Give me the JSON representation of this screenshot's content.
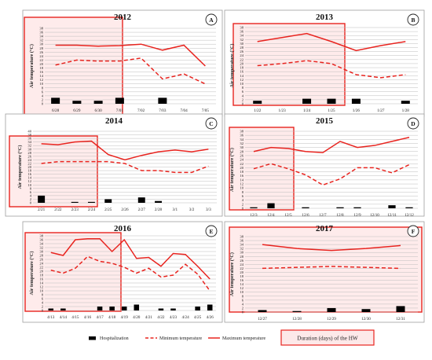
{
  "colors": {
    "max": "#e8241f",
    "min": "#e8241f",
    "hosp": "#000000",
    "hw_fill": "#fde2e2",
    "hw_border": "#e8241f",
    "grid": "#bdbdbd"
  },
  "legend": {
    "hospitalization": "Hospitalization",
    "min": "Minimum temperature",
    "max": "Maximum temperature",
    "hw": "Duration (days) of the HW"
  },
  "chart_data": [
    {
      "panel": "A",
      "title": "2012",
      "type": "line",
      "ylabel": "Air temperature (°C)",
      "ylim": [
        0,
        38
      ],
      "yticks": [
        0,
        2,
        4,
        6,
        8,
        10,
        12,
        14,
        16,
        18,
        20,
        22,
        24,
        26,
        28,
        30,
        32,
        34,
        36,
        38
      ],
      "categories": [
        "6/28",
        "6/29",
        "6/30",
        "7/01",
        "7/02",
        "7/03",
        "7/04",
        "7/05"
      ],
      "hw_range": [
        0,
        4
      ],
      "series": [
        {
          "name": "Maximum temperature",
          "style": "line",
          "values": [
            29.5,
            29.5,
            29,
            29.3,
            30,
            27,
            29.5,
            19
          ]
        },
        {
          "name": "Minimum temperature",
          "style": "dashed",
          "values": [
            19.5,
            22,
            21.5,
            21.5,
            23,
            12.5,
            15,
            10
          ]
        },
        {
          "name": "Hospitalization",
          "style": "bar",
          "values": [
            3,
            1.5,
            1.5,
            3,
            0,
            3,
            0,
            0
          ]
        }
      ]
    },
    {
      "panel": "B",
      "title": "2013",
      "type": "line",
      "ylabel": "Air temperature (°C)",
      "ylim": [
        0,
        38
      ],
      "yticks": [
        0,
        2,
        4,
        6,
        8,
        10,
        12,
        14,
        16,
        18,
        20,
        22,
        24,
        26,
        28,
        30,
        32,
        34,
        36,
        38
      ],
      "categories": [
        "1/22",
        "1/23",
        "1/24",
        "1/25",
        "1/26",
        "1/27",
        "1/28"
      ],
      "hw_range": [
        0,
        3
      ],
      "series": [
        {
          "name": "Maximum temperature",
          "style": "line",
          "values": [
            31,
            33,
            35,
            31,
            26.5,
            29,
            31
          ]
        },
        {
          "name": "Minimum temperature",
          "style": "dashed",
          "values": [
            19,
            20,
            21.5,
            20,
            14.5,
            13,
            14.5
          ]
        },
        {
          "name": "Hospitalization",
          "style": "bar",
          "values": [
            1.5,
            0,
            2.5,
            2.5,
            2.5,
            0,
            1.5
          ]
        }
      ]
    },
    {
      "panel": "C",
      "title": "2014",
      "type": "line",
      "ylabel": "Air temperature (°C)",
      "ylim": [
        0,
        40
      ],
      "yticks": [
        0,
        2,
        4,
        6,
        8,
        10,
        12,
        14,
        16,
        18,
        20,
        22,
        24,
        26,
        28,
        30,
        32,
        34,
        36,
        38,
        40
      ],
      "categories": [
        "2/21",
        "2/22",
        "2/23",
        "2/24",
        "2/25",
        "2/26",
        "2/27",
        "2/28",
        "3/1",
        "3/2",
        "3/3"
      ],
      "hw_range": [
        0,
        3
      ],
      "series": [
        {
          "name": "Maximum temperature",
          "style": "line",
          "values": [
            33,
            32.5,
            34,
            34.5,
            27,
            24,
            26.5,
            28.5,
            29.5,
            28.5,
            30
          ]
        },
        {
          "name": "Minimum temperature",
          "style": "dashed",
          "values": [
            22,
            23,
            23,
            23,
            23,
            22,
            18,
            18,
            17,
            17,
            20.5
          ]
        },
        {
          "name": "Hospitalization",
          "style": "bar",
          "values": [
            4,
            0,
            0.5,
            0.5,
            2,
            0,
            3,
            1,
            0,
            0,
            0
          ]
        }
      ]
    },
    {
      "panel": "D",
      "title": "2015",
      "type": "line",
      "ylabel": "Air temperature (°C)",
      "ylim": [
        0,
        38
      ],
      "yticks": [
        0,
        2,
        4,
        6,
        8,
        10,
        12,
        14,
        16,
        18,
        20,
        22,
        24,
        26,
        28,
        30,
        32,
        34,
        36,
        38
      ],
      "categories": [
        "12/3",
        "12/4",
        "12/5",
        "12/6",
        "12/7",
        "12/8",
        "12/9",
        "12/10",
        "12/11",
        "12/12"
      ],
      "hw_range": [
        0,
        3
      ],
      "series": [
        {
          "name": "Maximum temperature",
          "style": "line",
          "values": [
            28,
            30,
            29.5,
            28,
            27.5,
            33,
            30,
            31,
            33,
            35
          ]
        },
        {
          "name": "Minimum temperature",
          "style": "dashed",
          "values": [
            19.5,
            22,
            19.5,
            16.5,
            11.5,
            14.5,
            20,
            20,
            17.5,
            21.5
          ]
        },
        {
          "name": "Hospitalization",
          "style": "bar",
          "values": [
            0.5,
            2.5,
            0,
            0.5,
            0,
            0.5,
            0.5,
            0,
            1.5,
            0.5
          ]
        }
      ]
    },
    {
      "panel": "E",
      "title": "2016",
      "type": "line",
      "ylabel": "Air temperature (°C)",
      "ylim": [
        0,
        38
      ],
      "yticks": [
        0,
        2,
        4,
        6,
        8,
        10,
        12,
        14,
        16,
        18,
        20,
        22,
        24,
        26,
        28,
        30,
        32,
        34,
        36,
        38
      ],
      "categories": [
        "4/13",
        "4/14",
        "4/15",
        "4/16",
        "4/17",
        "4/18",
        "4/19",
        "4/20",
        "4/21",
        "4/22",
        "4/23",
        "4/24",
        "4/25",
        "4/26"
      ],
      "hw_range": [
        0,
        7
      ],
      "series": [
        {
          "name": "Maximum temperature",
          "style": "line",
          "values": [
            29.5,
            28,
            36,
            36.5,
            36.5,
            30,
            36,
            26.5,
            27,
            22.5,
            29,
            28.5,
            22.5,
            16
          ]
        },
        {
          "name": "Minimum temperature",
          "style": "dashed",
          "values": [
            20.5,
            19,
            21.5,
            27.5,
            25,
            24,
            22,
            19,
            21.5,
            17,
            18,
            23.5,
            18.5,
            10
          ]
        },
        {
          "name": "Hospitalization",
          "style": "bar",
          "values": [
            1,
            1,
            0,
            0,
            2,
            2,
            2,
            3,
            0,
            1,
            1,
            0,
            2,
            3
          ]
        }
      ]
    },
    {
      "panel": "F",
      "title": "2017",
      "type": "line",
      "ylabel": "Air temperature (°C)",
      "ylim": [
        0,
        38
      ],
      "yticks": [
        0,
        2,
        4,
        6,
        8,
        10,
        12,
        14,
        16,
        18,
        20,
        22,
        24,
        26,
        28,
        30,
        32,
        34,
        36,
        38
      ],
      "categories": [
        "12/27",
        "12/28",
        "12/29",
        "12/30",
        "12/31"
      ],
      "hw_range": [
        0,
        4
      ],
      "series": [
        {
          "name": "Maximum temperature",
          "style": "line",
          "values": [
            34,
            32,
            31,
            32,
            33.5
          ]
        },
        {
          "name": "Minimum temperature",
          "style": "dashed",
          "values": [
            22,
            22.5,
            23,
            22.5,
            22
          ]
        },
        {
          "name": "Hospitalization",
          "style": "bar",
          "values": [
            1,
            0.5,
            2,
            1.5,
            3
          ]
        }
      ]
    }
  ]
}
